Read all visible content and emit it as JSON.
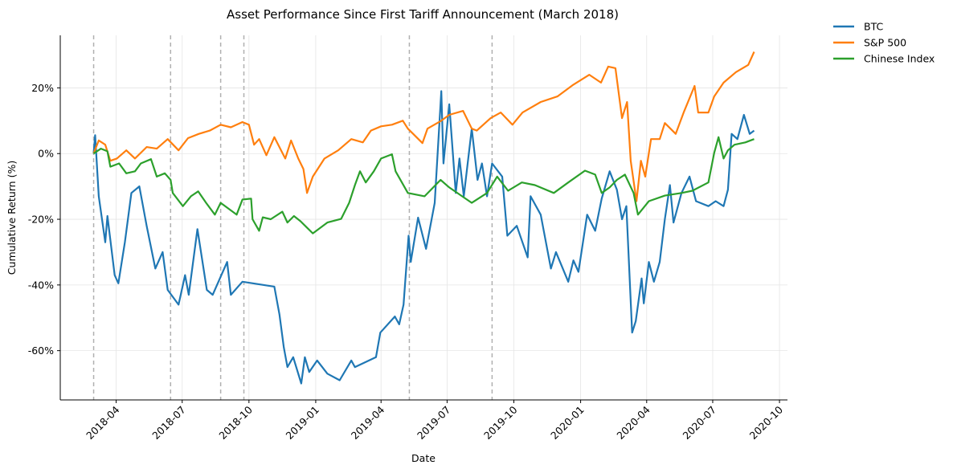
{
  "chart_data": {
    "type": "line",
    "title": "Asset Performance Since First Tariff Announcement (March 2018)",
    "xlabel": "Date",
    "ylabel": "Cumulative Return (%)",
    "xlim": [
      "2018-01-14",
      "2020-10-12"
    ],
    "ylim": [
      -75,
      36
    ],
    "x_ticks": [
      "2018-04",
      "2018-07",
      "2018-10",
      "2019-01",
      "2019-04",
      "2019-07",
      "2019-10",
      "2020-01",
      "2020-04",
      "2020-07",
      "2020-10"
    ],
    "y_ticks": [
      20,
      0,
      -20,
      -40,
      -60
    ],
    "y_tick_labels": [
      "20%",
      "0%",
      "-20%",
      "-40%",
      "-60%"
    ],
    "grid": true,
    "legend_placement": "outside top-right",
    "tariff_event_lines": [
      "2018-03-01",
      "2018-06-15",
      "2018-08-23",
      "2018-09-24",
      "2019-05-10",
      "2019-09-01"
    ],
    "event_line_color": "#b0b0b0",
    "series": [
      {
        "name": "BTC",
        "color": "#1f77b4",
        "points": [
          [
            "2018-03-01",
            0
          ],
          [
            "2018-03-03",
            5.6
          ],
          [
            "2018-03-08",
            -13
          ],
          [
            "2018-03-17",
            -27
          ],
          [
            "2018-03-20",
            -19
          ],
          [
            "2018-03-30",
            -37
          ],
          [
            "2018-04-04",
            -39.5
          ],
          [
            "2018-04-13",
            -27
          ],
          [
            "2018-04-22",
            -12
          ],
          [
            "2018-05-03",
            -10
          ],
          [
            "2018-05-13",
            -22
          ],
          [
            "2018-05-25",
            -35
          ],
          [
            "2018-06-04",
            -30
          ],
          [
            "2018-06-11",
            -41.5
          ],
          [
            "2018-06-26",
            -46
          ],
          [
            "2018-07-05",
            -37
          ],
          [
            "2018-07-10",
            -43
          ],
          [
            "2018-07-22",
            -23
          ],
          [
            "2018-08-04",
            -41.5
          ],
          [
            "2018-08-12",
            -43
          ],
          [
            "2018-09-01",
            -33
          ],
          [
            "2018-09-06",
            -43
          ],
          [
            "2018-09-22",
            -39
          ],
          [
            "2018-11-05",
            -40.5
          ],
          [
            "2018-11-12",
            -49
          ],
          [
            "2018-11-18",
            -59
          ],
          [
            "2018-11-23",
            -65
          ],
          [
            "2018-12-01",
            -62
          ],
          [
            "2018-12-12",
            -70
          ],
          [
            "2018-12-17",
            -62
          ],
          [
            "2018-12-23",
            -66.5
          ],
          [
            "2019-01-03",
            -63
          ],
          [
            "2019-01-17",
            -67
          ],
          [
            "2019-02-03",
            -69
          ],
          [
            "2019-02-19",
            -63
          ],
          [
            "2019-02-24",
            -65
          ],
          [
            "2019-03-25",
            -62
          ],
          [
            "2019-03-31",
            -54.5
          ],
          [
            "2019-04-20",
            -49.6
          ],
          [
            "2019-04-26",
            -52
          ],
          [
            "2019-05-02",
            -46
          ],
          [
            "2019-05-09",
            -25
          ],
          [
            "2019-05-12",
            -33
          ],
          [
            "2019-05-22",
            -19.5
          ],
          [
            "2019-06-02",
            -29
          ],
          [
            "2019-06-14",
            -15
          ],
          [
            "2019-06-23",
            19
          ],
          [
            "2019-06-26",
            -3
          ],
          [
            "2019-07-04",
            15
          ],
          [
            "2019-07-13",
            -12
          ],
          [
            "2019-07-18",
            -1.5
          ],
          [
            "2019-07-24",
            -13
          ],
          [
            "2019-08-04",
            7.6
          ],
          [
            "2019-08-12",
            -8
          ],
          [
            "2019-08-18",
            -3
          ],
          [
            "2019-08-25",
            -13
          ],
          [
            "2019-09-01",
            -3
          ],
          [
            "2019-09-15",
            -7
          ],
          [
            "2019-09-22",
            -25
          ],
          [
            "2019-10-05",
            -22
          ],
          [
            "2019-10-20",
            -31.6
          ],
          [
            "2019-10-24",
            -13
          ],
          [
            "2019-11-07",
            -18.6
          ],
          [
            "2019-11-21",
            -35
          ],
          [
            "2019-11-28",
            -30
          ],
          [
            "2019-12-15",
            -39
          ],
          [
            "2019-12-22",
            -32.5
          ],
          [
            "2019-12-29",
            -36
          ],
          [
            "2020-01-10",
            -18.6
          ],
          [
            "2020-01-21",
            -23.5
          ],
          [
            "2020-01-30",
            -13.7
          ],
          [
            "2020-02-10",
            -5.4
          ],
          [
            "2020-02-20",
            -11
          ],
          [
            "2020-02-27",
            -20
          ],
          [
            "2020-03-04",
            -16
          ],
          [
            "2020-03-12",
            -54.5
          ],
          [
            "2020-03-17",
            -51
          ],
          [
            "2020-03-25",
            -38
          ],
          [
            "2020-03-28",
            -45.6
          ],
          [
            "2020-04-04",
            -33
          ],
          [
            "2020-04-11",
            -39
          ],
          [
            "2020-04-19",
            -33
          ],
          [
            "2020-04-26",
            -20
          ],
          [
            "2020-05-03",
            -9.6
          ],
          [
            "2020-05-08",
            -21
          ],
          [
            "2020-05-19",
            -12
          ],
          [
            "2020-05-30",
            -7
          ],
          [
            "2020-06-08",
            -14.5
          ],
          [
            "2020-06-25",
            -16
          ],
          [
            "2020-07-05",
            -14.5
          ],
          [
            "2020-07-16",
            -16
          ],
          [
            "2020-07-22",
            -11
          ],
          [
            "2020-07-27",
            6
          ],
          [
            "2020-08-04",
            4.4
          ],
          [
            "2020-08-13",
            11.8
          ],
          [
            "2020-08-21",
            6
          ],
          [
            "2020-08-27",
            7
          ]
        ]
      },
      {
        "name": "S&P 500",
        "color": "#ff7f0e",
        "points": [
          [
            "2018-03-01",
            0
          ],
          [
            "2018-03-08",
            4
          ],
          [
            "2018-03-17",
            2.7
          ],
          [
            "2018-03-24",
            -2.2
          ],
          [
            "2018-04-02",
            -1.5
          ],
          [
            "2018-04-15",
            1
          ],
          [
            "2018-04-27",
            -1.5
          ],
          [
            "2018-05-13",
            2
          ],
          [
            "2018-05-27",
            1.5
          ],
          [
            "2018-06-11",
            4.4
          ],
          [
            "2018-06-26",
            1
          ],
          [
            "2018-07-09",
            4.7
          ],
          [
            "2018-07-24",
            6
          ],
          [
            "2018-08-08",
            7
          ],
          [
            "2018-08-23",
            8.8
          ],
          [
            "2018-09-06",
            8
          ],
          [
            "2018-09-22",
            9.6
          ],
          [
            "2018-10-01",
            8.8
          ],
          [
            "2018-10-08",
            2.7
          ],
          [
            "2018-10-15",
            4.4
          ],
          [
            "2018-10-25",
            -0.5
          ],
          [
            "2018-11-05",
            5
          ],
          [
            "2018-11-20",
            -1.5
          ],
          [
            "2018-11-28",
            4
          ],
          [
            "2018-12-08",
            -1.5
          ],
          [
            "2018-12-15",
            -4.7
          ],
          [
            "2018-12-20",
            -12
          ],
          [
            "2018-12-28",
            -7
          ],
          [
            "2019-01-13",
            -1.5
          ],
          [
            "2019-02-01",
            1
          ],
          [
            "2019-02-19",
            4.4
          ],
          [
            "2019-03-07",
            3.4
          ],
          [
            "2019-03-18",
            7
          ],
          [
            "2019-04-01",
            8.3
          ],
          [
            "2019-04-16",
            8.8
          ],
          [
            "2019-05-01",
            10
          ],
          [
            "2019-05-08",
            7.6
          ],
          [
            "2019-05-28",
            3.2
          ],
          [
            "2019-06-04",
            7.6
          ],
          [
            "2019-06-23",
            10
          ],
          [
            "2019-07-04",
            11.8
          ],
          [
            "2019-07-23",
            13
          ],
          [
            "2019-08-04",
            7.6
          ],
          [
            "2019-08-11",
            7
          ],
          [
            "2019-08-30",
            10.8
          ],
          [
            "2019-09-13",
            12.5
          ],
          [
            "2019-09-29",
            8.8
          ],
          [
            "2019-10-13",
            12.5
          ],
          [
            "2019-11-07",
            15.7
          ],
          [
            "2019-11-30",
            17.4
          ],
          [
            "2019-12-22",
            21
          ],
          [
            "2020-01-13",
            24
          ],
          [
            "2020-01-29",
            21.6
          ],
          [
            "2020-02-08",
            26.5
          ],
          [
            "2020-02-18",
            26
          ],
          [
            "2020-02-27",
            10.8
          ],
          [
            "2020-03-05",
            15.7
          ],
          [
            "2020-03-10",
            -2.2
          ],
          [
            "2020-03-18",
            -14.5
          ],
          [
            "2020-03-24",
            -2.2
          ],
          [
            "2020-03-30",
            -7
          ],
          [
            "2020-04-07",
            4.4
          ],
          [
            "2020-04-19",
            4.4
          ],
          [
            "2020-04-26",
            9.3
          ],
          [
            "2020-05-11",
            6
          ],
          [
            "2020-05-22",
            12.5
          ],
          [
            "2020-06-06",
            20.6
          ],
          [
            "2020-06-11",
            12.5
          ],
          [
            "2020-06-25",
            12.5
          ],
          [
            "2020-07-03",
            17.4
          ],
          [
            "2020-07-16",
            21.6
          ],
          [
            "2020-08-02",
            24.8
          ],
          [
            "2020-08-19",
            27
          ],
          [
            "2020-08-27",
            31
          ]
        ]
      },
      {
        "name": "Chinese Index",
        "color": "#2ca02c",
        "points": [
          [
            "2018-03-01",
            0
          ],
          [
            "2018-03-11",
            1.5
          ],
          [
            "2018-03-20",
            0.7
          ],
          [
            "2018-03-24",
            -4
          ],
          [
            "2018-04-05",
            -3
          ],
          [
            "2018-04-15",
            -6
          ],
          [
            "2018-04-27",
            -5.4
          ],
          [
            "2018-05-05",
            -3
          ],
          [
            "2018-05-19",
            -1.7
          ],
          [
            "2018-05-27",
            -7
          ],
          [
            "2018-06-07",
            -6
          ],
          [
            "2018-06-15",
            -8
          ],
          [
            "2018-06-18",
            -12
          ],
          [
            "2018-07-02",
            -16
          ],
          [
            "2018-07-13",
            -13
          ],
          [
            "2018-07-23",
            -11.5
          ],
          [
            "2018-08-03",
            -15
          ],
          [
            "2018-08-15",
            -18.6
          ],
          [
            "2018-08-23",
            -15
          ],
          [
            "2018-09-14",
            -18.6
          ],
          [
            "2018-09-22",
            -14
          ],
          [
            "2018-10-04",
            -13.7
          ],
          [
            "2018-10-06",
            -20
          ],
          [
            "2018-10-15",
            -23.5
          ],
          [
            "2018-10-20",
            -19.4
          ],
          [
            "2018-10-31",
            -20
          ],
          [
            "2018-11-16",
            -17.7
          ],
          [
            "2018-11-23",
            -21
          ],
          [
            "2018-12-02",
            -19
          ],
          [
            "2018-12-11",
            -20.6
          ],
          [
            "2018-12-28",
            -24.3
          ],
          [
            "2019-01-17",
            -21
          ],
          [
            "2019-02-05",
            -19.9
          ],
          [
            "2019-02-16",
            -15
          ],
          [
            "2019-02-24",
            -9.6
          ],
          [
            "2019-03-03",
            -5.4
          ],
          [
            "2019-03-11",
            -8.8
          ],
          [
            "2019-03-22",
            -5.4
          ],
          [
            "2019-04-01",
            -1.5
          ],
          [
            "2019-04-16",
            -0.2
          ],
          [
            "2019-04-21",
            -5.4
          ],
          [
            "2019-05-08",
            -12
          ],
          [
            "2019-05-31",
            -13
          ],
          [
            "2019-06-22",
            -8
          ],
          [
            "2019-07-04",
            -10.3
          ],
          [
            "2019-08-04",
            -15
          ],
          [
            "2019-08-25",
            -12
          ],
          [
            "2019-09-08",
            -7
          ],
          [
            "2019-09-23",
            -11.3
          ],
          [
            "2019-10-12",
            -8.8
          ],
          [
            "2019-10-30",
            -9.6
          ],
          [
            "2019-11-25",
            -12
          ],
          [
            "2019-12-15",
            -8.8
          ],
          [
            "2020-01-07",
            -5.2
          ],
          [
            "2020-01-21",
            -6.4
          ],
          [
            "2020-01-30",
            -12
          ],
          [
            "2020-02-10",
            -10.3
          ],
          [
            "2020-02-20",
            -8
          ],
          [
            "2020-03-02",
            -6.4
          ],
          [
            "2020-03-14",
            -12
          ],
          [
            "2020-03-20",
            -18.6
          ],
          [
            "2020-04-04",
            -14.5
          ],
          [
            "2020-04-26",
            -12.8
          ],
          [
            "2020-05-19",
            -12
          ],
          [
            "2020-06-03",
            -11.3
          ],
          [
            "2020-06-25",
            -8.8
          ],
          [
            "2020-07-03",
            0.2
          ],
          [
            "2020-07-09",
            5
          ],
          [
            "2020-07-16",
            -1.5
          ],
          [
            "2020-07-22",
            1
          ],
          [
            "2020-07-31",
            2.7
          ],
          [
            "2020-08-15",
            3.4
          ],
          [
            "2020-08-27",
            4.4
          ]
        ]
      }
    ]
  }
}
